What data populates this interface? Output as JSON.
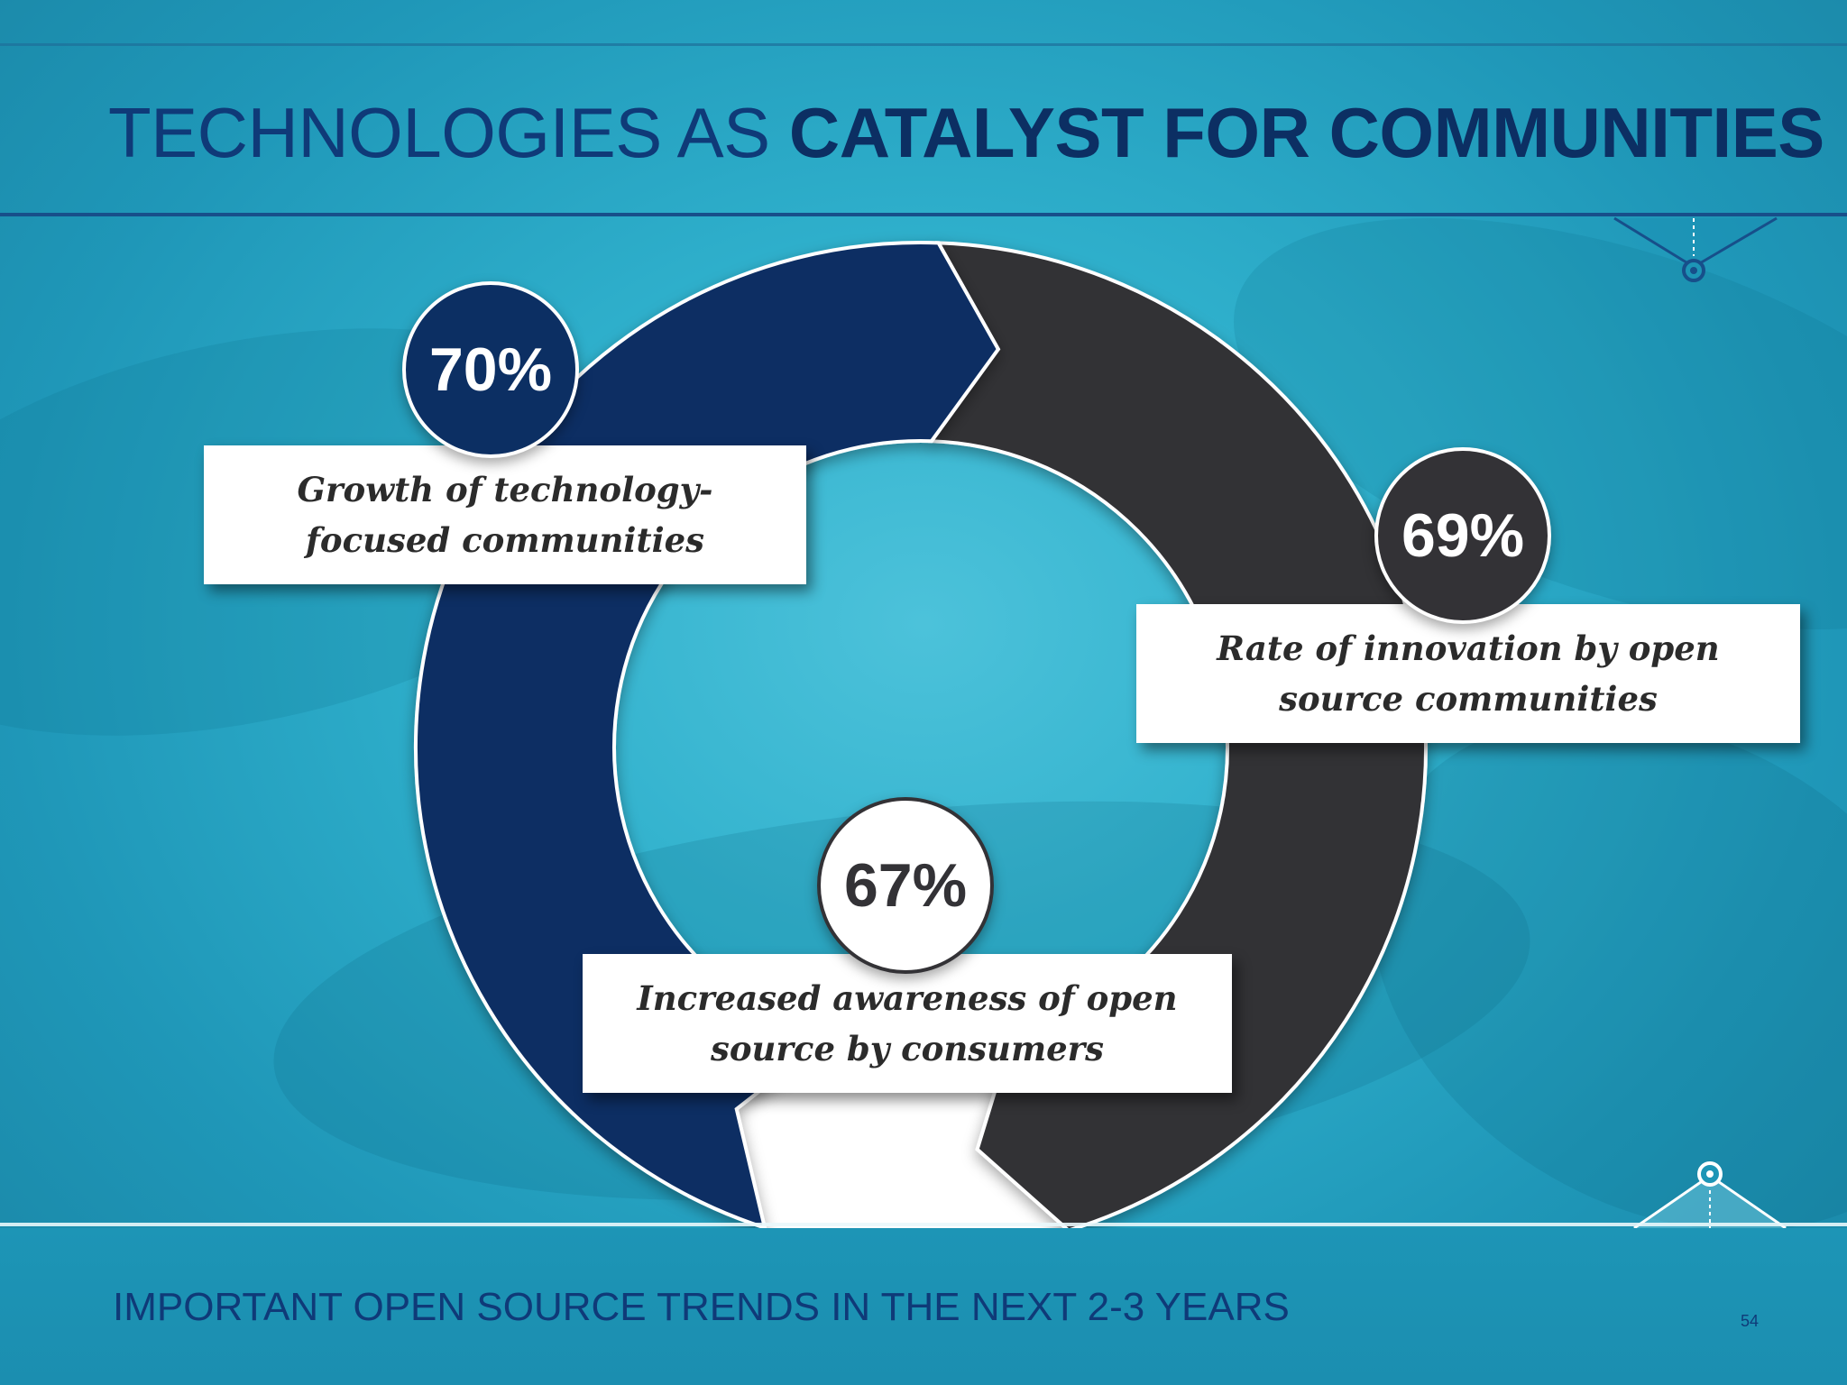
{
  "slide": {
    "title_regular": "TECHNOLOGIES AS ",
    "title_bold": "CATALYST FOR COMMUNITIES",
    "subtitle": "IMPORTANT OPEN SOURCE TRENDS IN THE NEXT 2-3 YEARS",
    "page_number": "54"
  },
  "cycle": [
    {
      "percent": "70%",
      "label_line1": "Growth of technology-",
      "label_line2": "focused communities",
      "color": "#0c2f63"
    },
    {
      "percent": "69%",
      "label_line1": "Rate of innovation by open",
      "label_line2": "source communities",
      "color": "#333236"
    },
    {
      "percent": "67%",
      "label_line1": "Increased awareness of open",
      "label_line2": "source by consumers",
      "color": "#ffffff"
    }
  ],
  "colors": {
    "title": "#0f3a78",
    "background": "#2aa6c4",
    "footer": "#1b8eb0"
  }
}
